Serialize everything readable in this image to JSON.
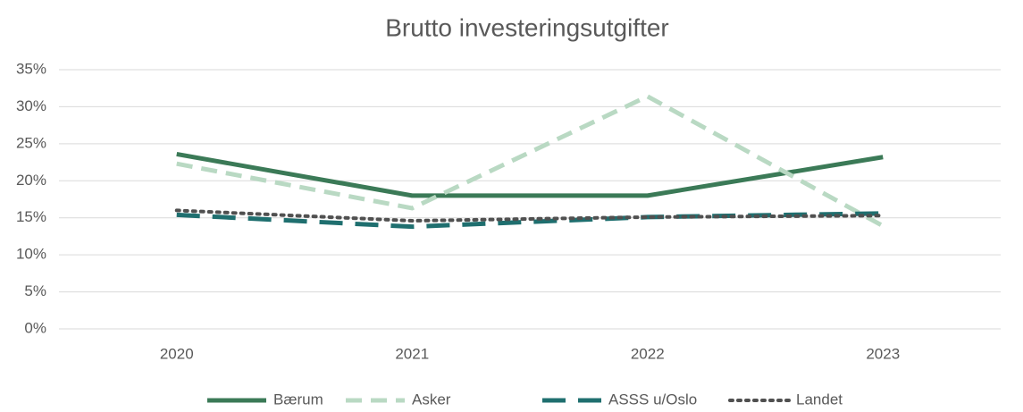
{
  "chart_data": {
    "type": "line",
    "title": "Brutto investeringsutgifter",
    "categories": [
      "2020",
      "2021",
      "2022",
      "2023"
    ],
    "series": [
      {
        "name": "Bærum",
        "color": "#3b7a57",
        "dash": "solid",
        "values": [
          23.6,
          18.0,
          18.0,
          23.2
        ]
      },
      {
        "name": "Asker",
        "color": "#b9d9c3",
        "dash": "dash",
        "values": [
          22.3,
          16.3,
          31.4,
          13.9
        ]
      },
      {
        "name": "ASSS u/Oslo",
        "color": "#1f6f6f",
        "dash": "longdash",
        "values": [
          15.4,
          13.8,
          15.1,
          15.6
        ]
      },
      {
        "name": "Landet",
        "color": "#505050",
        "dash": "dot",
        "values": [
          16.0,
          14.6,
          15.1,
          15.3
        ]
      }
    ],
    "ylim": [
      0,
      35
    ],
    "yticks": [
      {
        "value": 0,
        "label": "0%"
      },
      {
        "value": 5,
        "label": "5%"
      },
      {
        "value": 10,
        "label": "10%"
      },
      {
        "value": 15,
        "label": "15%"
      },
      {
        "value": 20,
        "label": "20%"
      },
      {
        "value": 25,
        "label": "25%"
      },
      {
        "value": 30,
        "label": "30%"
      },
      {
        "value": 35,
        "label": "35%"
      }
    ],
    "grid": true,
    "legend": "bottom"
  }
}
